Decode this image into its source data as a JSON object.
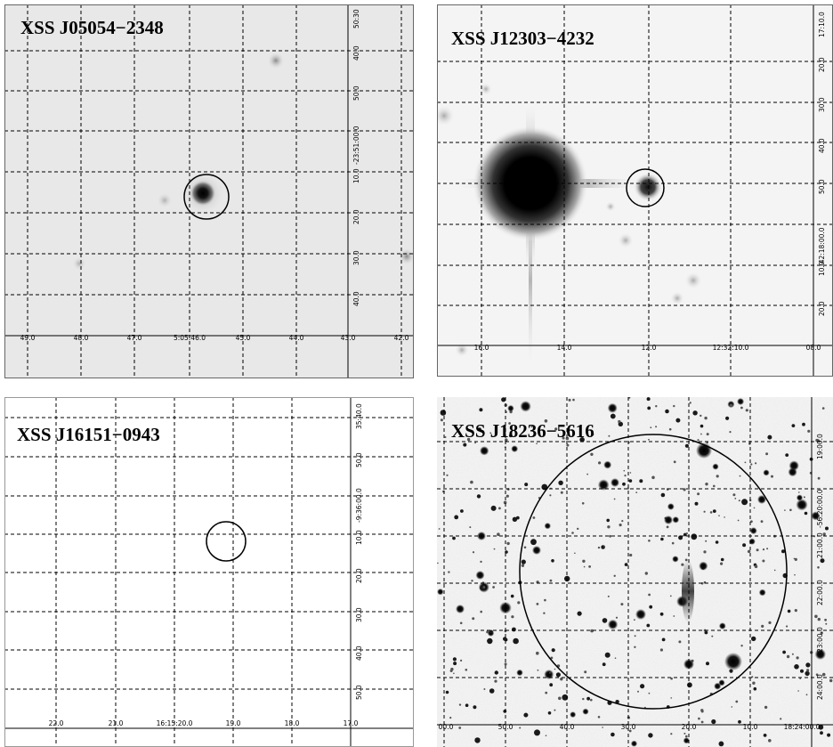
{
  "panels": [
    {
      "title": "XSS J05054−2348",
      "dec_ticks": [
        "50:30",
        "40.0",
        "50.0",
        "-23:51:00.0",
        "10.0",
        "20.0",
        "30.0",
        "40.0"
      ],
      "ra_ticks": [
        "49.0",
        "48.0",
        "47.0",
        "5:05:46.0",
        "45.0",
        "44.0",
        "43.0",
        "42.0"
      ]
    },
    {
      "title": "XSS J12303−4232",
      "dec_ticks": [
        "17:10.0",
        "20.0",
        "30.0",
        "40.0",
        "50.0",
        "-42:18:00.0",
        "10.0",
        "20.0"
      ],
      "ra_ticks": [
        "16.0",
        "14.0",
        "12.0",
        "12:32:10.0",
        "08.0"
      ]
    },
    {
      "title": "XSS J16151−0943",
      "dec_ticks": [
        "35:40.0",
        "50.0",
        "-9:36:00.0",
        "10.0",
        "20.0",
        "30.0",
        "40.0",
        "50.0"
      ],
      "ra_ticks": [
        "22.0",
        "21.0",
        "16:15:20.0",
        "19.0",
        "18.0",
        "17.0"
      ]
    },
    {
      "title": "XSS J18236−5616",
      "dec_ticks": [
        "19:00.0",
        "-56:20:00.0",
        "21:00.0",
        "22:00.0",
        "23:00.0",
        "24:00.0"
      ],
      "ra_ticks": [
        "00.0",
        "50.0",
        "40.0",
        "30.0",
        "20.0",
        "10.0",
        "18:24:00.0"
      ]
    }
  ]
}
